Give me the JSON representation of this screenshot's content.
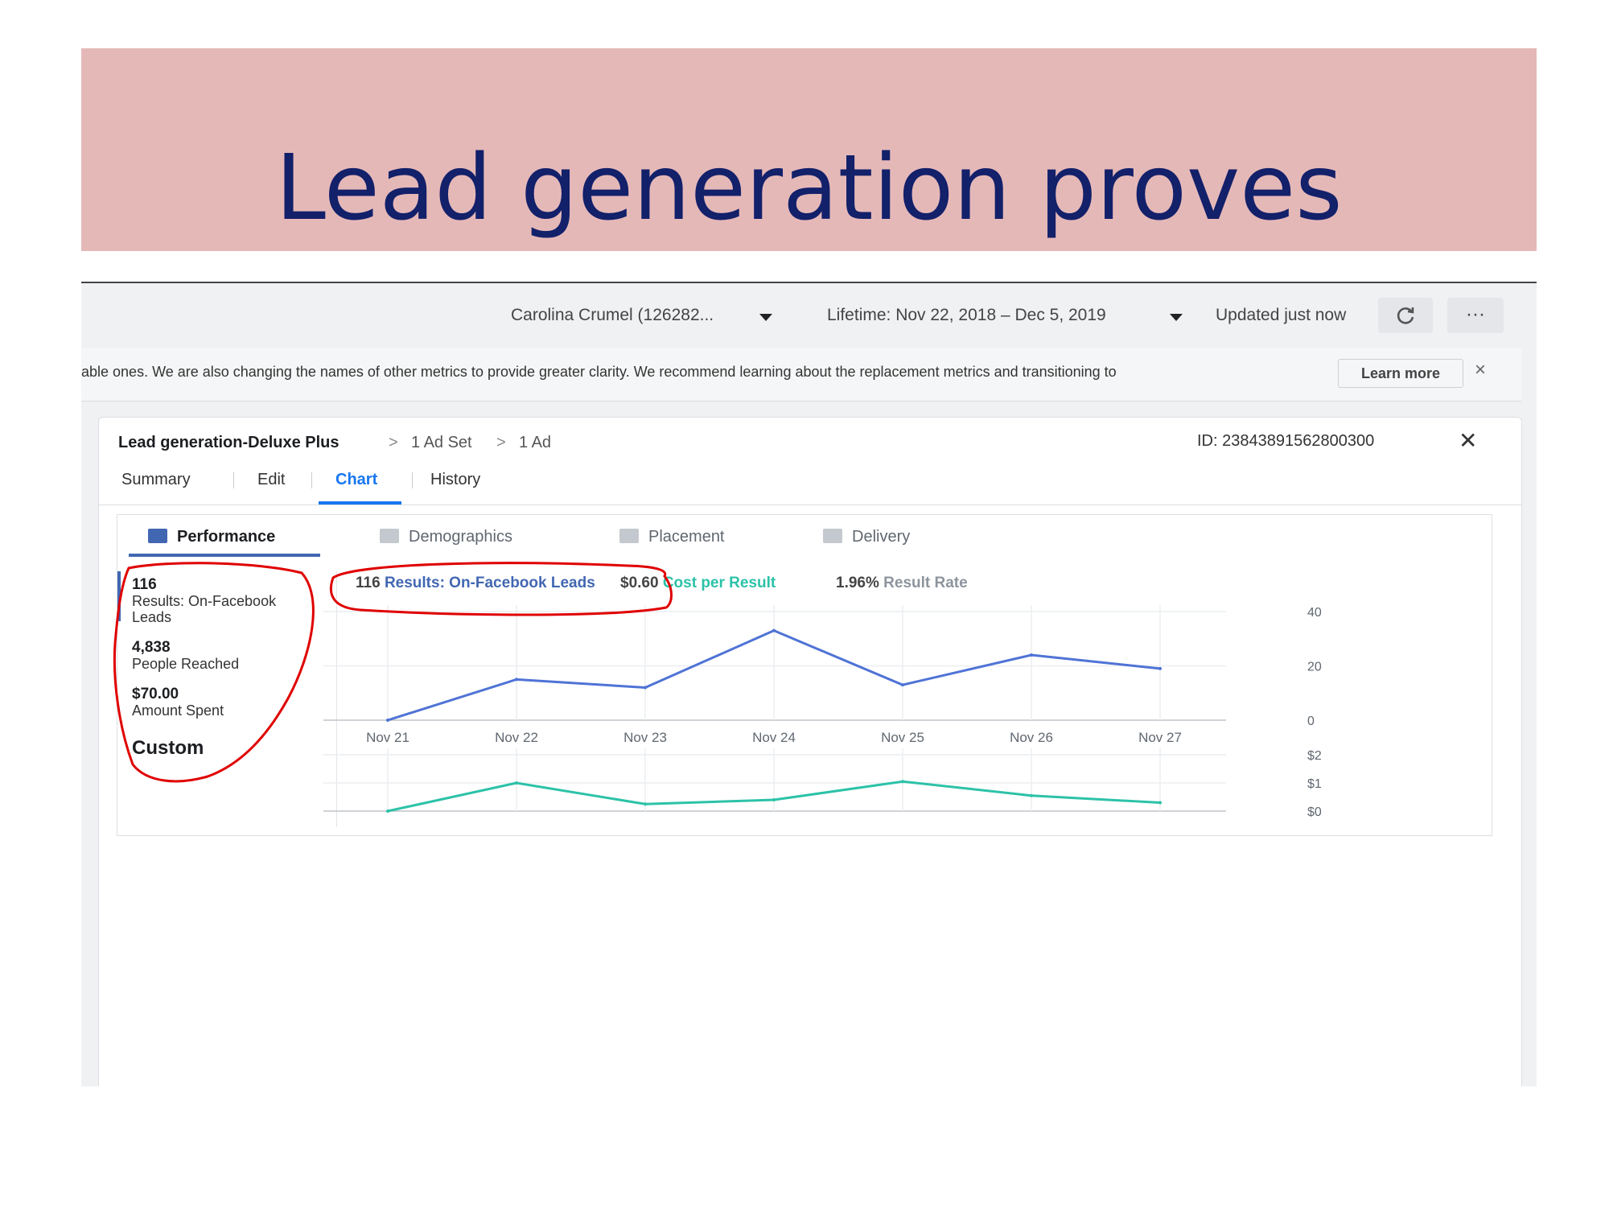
{
  "slide_title": "Lead generation proves",
  "topbar": {
    "account": "Carolina Crumel (126282...",
    "date_range": "Lifetime: Nov 22, 2018 – Dec 5, 2019",
    "updated": "Updated just now",
    "more": "···"
  },
  "notice": {
    "message": "able ones. We are also changing the names of other metrics to provide greater clarity. We recommend learning about the replacement metrics and transitioning to",
    "learn_more": "Learn more",
    "close": "×"
  },
  "panel": {
    "breadcrumb": [
      "Lead generation-Deluxe Plus",
      "1 Ad Set",
      "1 Ad"
    ],
    "id": "ID: 23843891562800300",
    "tabs": [
      "Summary",
      "Edit",
      "Chart",
      "History"
    ],
    "active_tab": "Chart"
  },
  "chart_tabs": [
    "Performance",
    "Demographics",
    "Placement",
    "Delivery"
  ],
  "metrics": {
    "results_value": "116",
    "results_label": "Results: On-Facebook Leads",
    "reached_value": "4,838",
    "reached_label": "People Reached",
    "spent_value": "$70.00",
    "spent_label": "Amount Spent",
    "custom": "Custom"
  },
  "legend": {
    "results_value": "116",
    "results_label": "Results: On-Facebook Leads",
    "cpr_value": "$0.60",
    "cpr_label": "Cost per Result",
    "rate_value": "1.96%",
    "rate_label": "Result Rate"
  },
  "colors": {
    "results": "#4f73d6",
    "cost": "#2cc2a8",
    "annotation": "#e00000"
  },
  "chart_data": [
    {
      "type": "line",
      "categories": [
        "Nov 21",
        "Nov 22",
        "Nov 23",
        "Nov 24",
        "Nov 25",
        "Nov 26",
        "Nov 27"
      ],
      "series": [
        {
          "name": "Results: On-Facebook Leads",
          "values": [
            0,
            15,
            12,
            33,
            13,
            24,
            19
          ]
        }
      ],
      "yticks": [
        "40",
        "20",
        "0"
      ],
      "ylim": [
        0,
        40
      ],
      "grid": true
    },
    {
      "type": "line",
      "categories": [
        "Nov 21",
        "Nov 22",
        "Nov 23",
        "Nov 24",
        "Nov 25",
        "Nov 26",
        "Nov 27"
      ],
      "series": [
        {
          "name": "Cost per Result",
          "values": [
            0.0,
            1.0,
            0.25,
            0.4,
            1.05,
            0.55,
            0.3
          ]
        }
      ],
      "yticks": [
        "$2",
        "$1",
        "$0"
      ],
      "ylim": [
        0,
        2
      ],
      "grid": true
    }
  ]
}
